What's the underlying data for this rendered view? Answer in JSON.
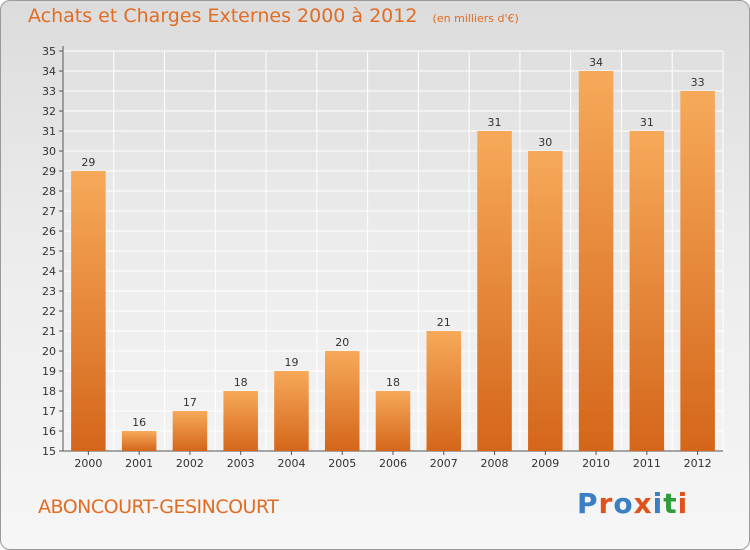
{
  "header": {
    "title": "Achats et Charges Externes 2000 à 2012",
    "unit": "(en milliers d'€)"
  },
  "footer": {
    "commune": "ABONCOURT-GESINCOURT",
    "brand": "Proxiti"
  },
  "colors": {
    "accent": "#e06d23",
    "bar_top": "#f7a95a",
    "bar_bottom": "#d4661a",
    "grid": "#ffffff",
    "brand_letters": [
      "#3a7fc4",
      "#e0521c",
      "#3a7fc4",
      "#e0521c",
      "#3a7fc4",
      "#2e9e3a",
      "#e0521c"
    ]
  },
  "chart_data": {
    "type": "bar",
    "categories": [
      "2000",
      "2001",
      "2002",
      "2003",
      "2004",
      "2005",
      "2006",
      "2007",
      "2008",
      "2009",
      "2010",
      "2011",
      "2012"
    ],
    "values": [
      29,
      16,
      17,
      18,
      19,
      20,
      18,
      21,
      31,
      30,
      34,
      31,
      33
    ],
    "title": "Achats et Charges Externes 2000 à 2012",
    "xlabel": "",
    "ylabel": "",
    "ylim": [
      15,
      35
    ],
    "yticks": [
      15,
      16,
      17,
      18,
      19,
      20,
      21,
      22,
      23,
      24,
      25,
      26,
      27,
      28,
      29,
      30,
      31,
      32,
      33,
      34,
      35
    ],
    "grid": true,
    "legend": "none"
  }
}
